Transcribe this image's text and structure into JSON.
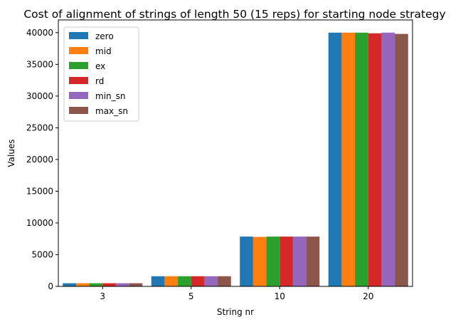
{
  "chart_data": {
    "type": "bar",
    "title": "Cost of alignment of strings of length 50 (15 reps) for starting node strategy",
    "xlabel": "String nr",
    "ylabel": "Values",
    "categories": [
      "3",
      "5",
      "10",
      "20"
    ],
    "ylim": [
      0,
      42000
    ],
    "yticks": [
      0,
      5000,
      10000,
      15000,
      20000,
      25000,
      30000,
      35000,
      40000
    ],
    "grid": false,
    "legend_position": "top-left",
    "series": [
      {
        "name": "zero",
        "color": "#1f77b4",
        "values": [
          500,
          1600,
          7850,
          40000
        ]
      },
      {
        "name": "mid",
        "color": "#ff7f0e",
        "values": [
          500,
          1600,
          7800,
          40000
        ]
      },
      {
        "name": "ex",
        "color": "#2ca02c",
        "values": [
          500,
          1600,
          7850,
          40000
        ]
      },
      {
        "name": "rd",
        "color": "#d62728",
        "values": [
          500,
          1600,
          7850,
          39900
        ]
      },
      {
        "name": "min_sn",
        "color": "#9467bd",
        "values": [
          500,
          1600,
          7850,
          40000
        ]
      },
      {
        "name": "max_sn",
        "color": "#8c564b",
        "values": [
          500,
          1600,
          7850,
          39800
        ]
      }
    ]
  }
}
